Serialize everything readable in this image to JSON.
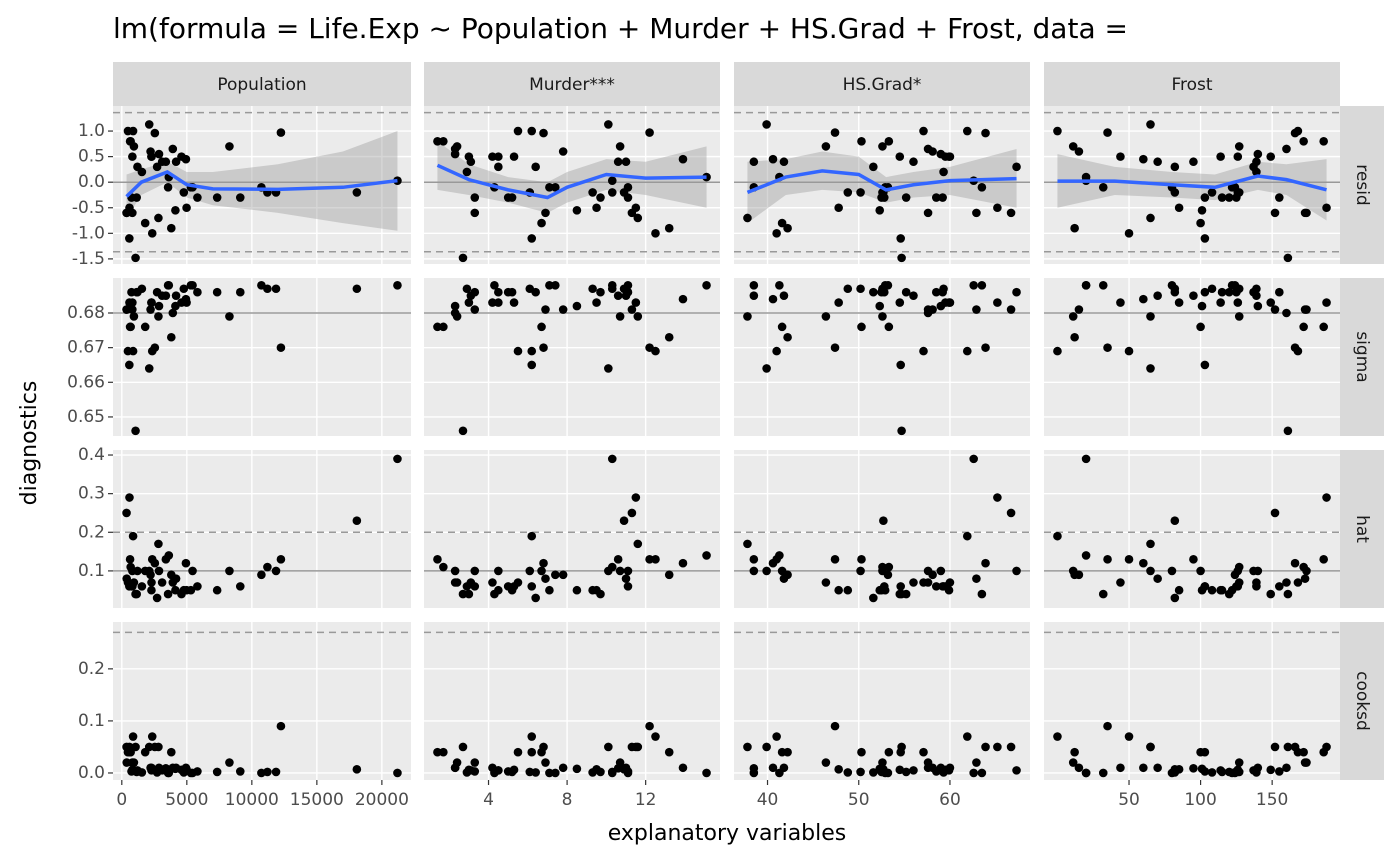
{
  "chart_data": {
    "type": "scatter",
    "title": "lm(formula = Life.Exp ~ Population + Murder + HS.Grad + Frost, data =",
    "x_label": "explanatory variables",
    "y_label": "diagnostics",
    "point_color": "#000000",
    "smooth_color": "#3366FF",
    "columns": [
      {
        "name": "Population",
        "xlim": [
          -677,
          22240
        ],
        "xticks": [
          0,
          5000,
          10000,
          15000,
          20000
        ],
        "x": [
          3615,
          365,
          2212,
          2110,
          21198,
          2541,
          3100,
          579,
          8277,
          4931,
          868,
          813,
          11197,
          5313,
          2861,
          2280,
          3387,
          3806,
          1058,
          4122,
          5814,
          9111,
          3921,
          2341,
          4767,
          746,
          1544,
          590,
          812,
          7333,
          1144,
          18076,
          5441,
          637,
          10735,
          2715,
          2284,
          11860,
          931,
          2816,
          681,
          4173,
          12237,
          1203,
          472,
          4981,
          3559,
          1799,
          4589,
          376
        ],
        "smooth": {
          "x": [
            365,
            1500,
            3500,
            5000,
            7000,
            12000,
            17000,
            21198
          ],
          "fit": [
            -0.28,
            0.0,
            0.2,
            -0.05,
            -0.13,
            -0.14,
            -0.1,
            0.03
          ],
          "lo": [
            -0.7,
            -0.25,
            0.0,
            -0.3,
            -0.45,
            -0.6,
            -0.8,
            -0.95
          ],
          "hi": [
            0.15,
            0.25,
            0.4,
            0.2,
            0.2,
            0.35,
            0.6,
            1.0
          ]
        }
      },
      {
        "name": "Murder***",
        "xlim": [
          0.715,
          15.785
        ],
        "xticks": [
          4,
          8,
          12
        ],
        "x": [
          15.1,
          11.3,
          7.8,
          10.1,
          10.3,
          6.8,
          3.1,
          6.2,
          10.7,
          13.9,
          6.2,
          5.3,
          10.3,
          7.1,
          2.3,
          4.5,
          10.6,
          13.2,
          2.7,
          8.5,
          3.3,
          11.1,
          2.3,
          12.5,
          9.3,
          5.0,
          2.9,
          11.5,
          3.3,
          5.2,
          9.7,
          10.9,
          11.1,
          1.4,
          7.4,
          6.4,
          4.2,
          6.1,
          2.4,
          11.6,
          1.7,
          11.0,
          12.2,
          4.5,
          5.5,
          9.5,
          4.3,
          6.7,
          3.0,
          6.9
        ],
        "smooth": {
          "x": [
            1.4,
            3,
            5,
            7,
            8,
            10,
            12,
            15.1
          ],
          "fit": [
            0.33,
            0.05,
            -0.15,
            -0.3,
            -0.1,
            0.15,
            0.08,
            0.1
          ],
          "lo": [
            -0.15,
            -0.25,
            -0.4,
            -0.6,
            -0.4,
            -0.15,
            -0.25,
            -0.5
          ],
          "hi": [
            0.8,
            0.35,
            0.1,
            0.0,
            0.2,
            0.45,
            0.4,
            0.7
          ]
        }
      },
      {
        "name": "HS.Grad*",
        "xlim": [
          36.325,
          68.775
        ],
        "xticks": [
          40,
          50,
          60
        ],
        "x": [
          41.3,
          66.7,
          58.1,
          39.9,
          62.6,
          63.9,
          56.0,
          54.6,
          52.6,
          40.6,
          61.9,
          59.5,
          52.6,
          52.9,
          59.0,
          59.9,
          38.5,
          42.2,
          54.7,
          52.3,
          58.5,
          52.8,
          57.6,
          41.0,
          48.8,
          59.2,
          59.3,
          65.2,
          57.6,
          52.5,
          55.2,
          52.7,
          38.5,
          50.3,
          53.2,
          51.6,
          60.0,
          50.2,
          46.4,
          37.8,
          53.3,
          41.8,
          47.4,
          67.3,
          57.1,
          47.8,
          63.5,
          41.6,
          54.5,
          62.9
        ],
        "smooth": {
          "x": [
            37.8,
            42,
            46,
            50,
            53,
            56,
            60,
            67.3
          ],
          "fit": [
            -0.2,
            0.1,
            0.22,
            0.15,
            -0.15,
            -0.05,
            0.03,
            0.07
          ],
          "lo": [
            -0.8,
            -0.25,
            -0.15,
            -0.2,
            -0.4,
            -0.3,
            -0.25,
            -0.5
          ],
          "hi": [
            0.4,
            0.45,
            0.6,
            0.5,
            0.1,
            0.2,
            0.3,
            0.65
          ]
        }
      },
      {
        "name": "Frost",
        "xlim": [
          -9.4,
          197.4
        ],
        "xticks": [
          50,
          100,
          150
        ],
        "x": [
          20,
          152,
          15,
          65,
          20,
          166,
          139,
          103,
          11,
          60,
          0,
          126,
          127,
          122,
          140,
          114,
          95,
          12,
          161,
          101,
          103,
          125,
          160,
          50,
          108,
          155,
          139,
          188,
          174,
          115,
          120,
          82,
          80,
          186,
          124,
          82,
          44,
          126,
          127,
          65,
          172,
          70,
          35,
          137,
          168,
          85,
          32,
          100,
          149,
          173
        ],
        "smooth": {
          "x": [
            0,
            40,
            80,
            110,
            140,
            160,
            188
          ],
          "fit": [
            0.02,
            0.02,
            -0.05,
            -0.1,
            0.12,
            0.05,
            -0.15
          ],
          "lo": [
            -0.5,
            -0.25,
            -0.3,
            -0.35,
            -0.15,
            -0.25,
            -0.75
          ],
          "hi": [
            0.55,
            0.3,
            0.2,
            0.15,
            0.4,
            0.35,
            0.45
          ]
        }
      }
    ],
    "rows": [
      {
        "name": "resid",
        "ylim": [
          -1.6,
          1.49
        ],
        "yticks": [
          -1.5,
          {
            "value": -1,
            "label": "-1.0"
          },
          -0.5,
          {
            "value": 0,
            "label": "0.0"
          },
          0.5,
          {
            "value": 1,
            "label": "1.0"
          }
        ],
        "hline": 0,
        "dashed": [
          -1.36,
          1.36
        ],
        "smooth": true,
        "values": [
          0.1,
          -0.6,
          0.6,
          1.13,
          0.03,
          0.96,
          0.4,
          -1.1,
          0.7,
          0.45,
          1.0,
          0.5,
          -0.2,
          -0.1,
          0.55,
          0.5,
          0.4,
          -0.9,
          -1.48,
          -0.55,
          -0.3,
          -0.3,
          0.65,
          -1.0,
          -0.2,
          -0.3,
          0.2,
          -0.5,
          -0.6,
          -0.3,
          -0.3,
          -0.2,
          -0.1,
          0.8,
          -0.1,
          0.3,
          0.5,
          -0.2,
          0.7,
          -0.7,
          0.8,
          0.4,
          0.97,
          0.3,
          1.0,
          -0.5,
          -0.1,
          -0.8,
          0.5,
          -0.6
        ]
      },
      {
        "name": "sigma",
        "ylim": [
          0.6445,
          0.6901
        ],
        "yticks": [
          0.65,
          0.66,
          0.67,
          0.68
        ],
        "hline": 0.68,
        "dashed": [],
        "smooth": false,
        "values": [
          0.688,
          0.681,
          0.681,
          0.664,
          0.688,
          0.67,
          0.685,
          0.665,
          0.679,
          0.684,
          0.669,
          0.683,
          0.687,
          0.688,
          0.682,
          0.683,
          0.685,
          0.673,
          0.646,
          0.682,
          0.686,
          0.686,
          0.68,
          0.669,
          0.687,
          0.686,
          0.687,
          0.683,
          0.681,
          0.686,
          0.686,
          0.687,
          0.688,
          0.676,
          0.688,
          0.686,
          0.683,
          0.687,
          0.679,
          0.679,
          0.676,
          0.685,
          0.67,
          0.686,
          0.669,
          0.683,
          0.688,
          0.676,
          0.683,
          0.681
        ]
      },
      {
        "name": "hat",
        "ylim": [
          0.004,
          0.413
        ],
        "yticks": [
          0.1,
          0.2,
          0.3,
          0.4
        ],
        "hline": 0.1,
        "dashed": [
          0.2
        ],
        "smooth": false,
        "values": [
          0.14,
          0.25,
          0.09,
          0.1,
          0.39,
          0.12,
          0.07,
          0.06,
          0.1,
          0.12,
          0.19,
          0.06,
          0.11,
          0.05,
          0.1,
          0.05,
          0.13,
          0.09,
          0.04,
          0.05,
          0.06,
          0.06,
          0.07,
          0.13,
          0.05,
          0.06,
          0.06,
          0.29,
          0.1,
          0.05,
          0.04,
          0.23,
          0.1,
          0.13,
          0.09,
          0.03,
          0.07,
          0.1,
          0.07,
          0.17,
          0.11,
          0.08,
          0.13,
          0.1,
          0.07,
          0.05,
          0.04,
          0.1,
          0.04,
          0.08
        ]
      },
      {
        "name": "cooksd",
        "ylim": [
          -0.0135,
          0.29
        ],
        "yticks": [
          {
            "value": 0,
            "label": "0.0"
          },
          0.1,
          0.2
        ],
        "hline": null,
        "dashed": [
          0.27
        ],
        "smooth": false,
        "values": [
          0.0,
          0.05,
          0.01,
          0.05,
          0.0,
          0.05,
          0.005,
          0.04,
          0.02,
          0.01,
          0.07,
          0.006,
          0.002,
          0.0,
          0.01,
          0.005,
          0.009,
          0.04,
          0.05,
          0.008,
          0.003,
          0.003,
          0.01,
          0.07,
          0.001,
          0.003,
          0.001,
          0.05,
          0.02,
          0.002,
          0.002,
          0.007,
          0.0,
          0.04,
          0.0,
          0.001,
          0.01,
          0.002,
          0.02,
          0.05,
          0.04,
          0.01,
          0.09,
          0.005,
          0.04,
          0.007,
          0.0,
          0.04,
          0.006,
          0.02
        ]
      }
    ]
  }
}
